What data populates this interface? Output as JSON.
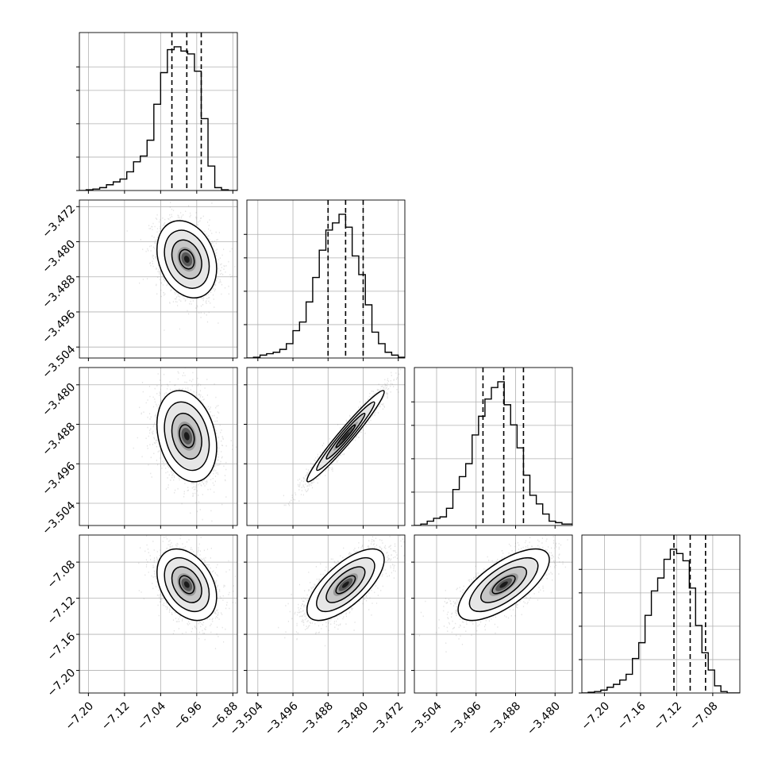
{
  "chart_data": {
    "type": "corner",
    "grid": true,
    "title": "",
    "colors": {
      "ink": "#000000",
      "grid": "#b0b0b0",
      "scatter": "#7f7f7f"
    },
    "parameters": [
      {
        "range": [
          -7.22,
          -6.87
        ],
        "ticks": [
          -7.2,
          -7.12,
          -7.04,
          -6.96,
          -6.88
        ],
        "tick_labels": [
          "−7.20",
          "−7.12",
          "−7.04",
          "−6.96",
          "−6.88"
        ],
        "quantiles": [
          -7.015,
          -6.982,
          -6.95
        ],
        "hist_bin_edges": [
          -7.22,
          -7.205,
          -7.19,
          -7.175,
          -7.16,
          -7.145,
          -7.13,
          -7.115,
          -7.1,
          -7.085,
          -7.07,
          -7.055,
          -7.04,
          -7.025,
          -7.01,
          -6.995,
          -6.98,
          -6.965,
          -6.95,
          -6.935,
          -6.92,
          -6.905,
          -6.89,
          -6.875,
          -6.87
        ],
        "hist_heights": [
          0,
          0.005,
          0.01,
          0.02,
          0.04,
          0.06,
          0.08,
          0.13,
          0.2,
          0.24,
          0.35,
          0.6,
          0.82,
          0.98,
          1.0,
          0.97,
          0.95,
          0.83,
          0.5,
          0.17,
          0.02,
          0.005,
          0,
          0
        ],
        "mean": -6.982,
        "sd": 0.03,
        "skew": -0.6
      },
      {
        "range": [
          -3.5065,
          -3.4705
        ],
        "ticks": [
          -3.504,
          -3.496,
          -3.488,
          -3.48,
          -3.472
        ],
        "tick_labels": [
          "−3.504",
          "−3.496",
          "−3.488",
          "−3.480",
          "−3.472"
        ],
        "quantiles": [
          -3.488,
          -3.484,
          -3.48
        ],
        "hist_bin_edges": [
          -3.5065,
          -3.505,
          -3.5035,
          -3.502,
          -3.5005,
          -3.499,
          -3.4975,
          -3.496,
          -3.4945,
          -3.493,
          -3.4915,
          -3.49,
          -3.4885,
          -3.487,
          -3.4855,
          -3.484,
          -3.4825,
          -3.481,
          -3.4795,
          -3.478,
          -3.4765,
          -3.475,
          -3.4735,
          -3.472,
          -3.4705
        ],
        "hist_heights": [
          0,
          0.005,
          0.02,
          0.03,
          0.04,
          0.06,
          0.1,
          0.19,
          0.25,
          0.39,
          0.56,
          0.75,
          0.89,
          0.94,
          1.0,
          0.91,
          0.71,
          0.58,
          0.37,
          0.18,
          0.1,
          0.04,
          0.02,
          0.005
        ],
        "mean": -3.484,
        "sd": 0.004,
        "skew": -0.3
      },
      {
        "range": [
          -3.5085,
          -3.4765
        ],
        "ticks": [
          -3.504,
          -3.496,
          -3.488,
          -3.48
        ],
        "tick_labels": [
          "−3.504",
          "−3.496",
          "−3.488",
          "−3.480"
        ],
        "quantiles": [
          -3.4946,
          -3.4904,
          -3.4864
        ],
        "hist_bin_edges": [
          -3.5085,
          -3.5072,
          -3.5059,
          -3.5046,
          -3.5033,
          -3.502,
          -3.5007,
          -3.4994,
          -3.4981,
          -3.4968,
          -3.4955,
          -3.4942,
          -3.4929,
          -3.4916,
          -3.4903,
          -3.489,
          -3.4877,
          -3.4864,
          -3.4851,
          -3.4838,
          -3.4825,
          -3.4812,
          -3.4799,
          -3.4786,
          -3.4765
        ],
        "hist_heights": [
          0,
          0.01,
          0.03,
          0.05,
          0.06,
          0.12,
          0.25,
          0.34,
          0.43,
          0.63,
          0.76,
          0.88,
          0.96,
          1.0,
          0.84,
          0.7,
          0.54,
          0.35,
          0.21,
          0.15,
          0.08,
          0.03,
          0.02,
          0.01
        ],
        "mean": -3.4904,
        "sd": 0.0042,
        "skew": -0.3
      },
      {
        "range": [
          -7.225,
          -7.05
        ],
        "ticks": [
          -7.2,
          -7.16,
          -7.12,
          -7.08
        ],
        "tick_labels": [
          "−7.20",
          "−7.16",
          "−7.12",
          "−7.08"
        ],
        "quantiles": [
          -7.123,
          -7.105,
          -7.088
        ],
        "hist_bin_edges": [
          -7.225,
          -7.218,
          -7.211,
          -7.204,
          -7.197,
          -7.19,
          -7.183,
          -7.176,
          -7.169,
          -7.162,
          -7.155,
          -7.148,
          -7.141,
          -7.134,
          -7.127,
          -7.12,
          -7.113,
          -7.106,
          -7.099,
          -7.092,
          -7.085,
          -7.078,
          -7.071,
          -7.064,
          -7.05
        ],
        "hist_heights": [
          0,
          0.005,
          0.01,
          0.02,
          0.04,
          0.06,
          0.09,
          0.13,
          0.24,
          0.35,
          0.54,
          0.71,
          0.8,
          0.93,
          1.0,
          0.97,
          0.92,
          0.73,
          0.47,
          0.28,
          0.16,
          0.05,
          0.01,
          0
        ],
        "mean": -7.105,
        "sd": 0.018,
        "skew": -0.5
      }
    ],
    "correlations": {
      "1-0": -0.25,
      "2-0": -0.25,
      "2-1": 0.97,
      "3-0": -0.35,
      "3-1": 0.7,
      "3-2": 0.7
    },
    "contour_levels_sigma": [
      0.5,
      1.0,
      1.5,
      2.0
    ]
  }
}
